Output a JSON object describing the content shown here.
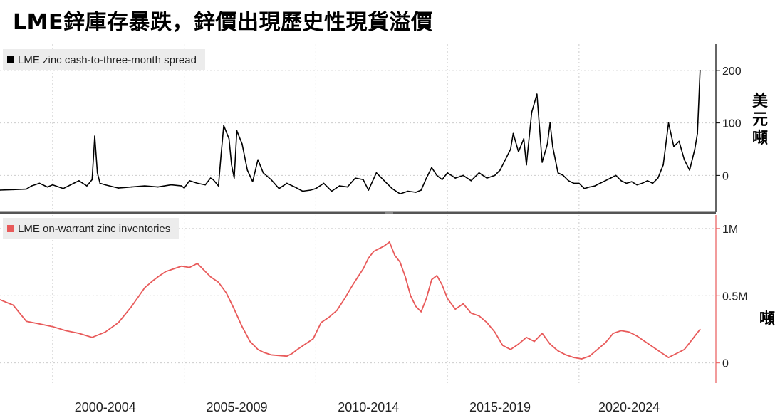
{
  "title": "LME鋅庫存暴跌，鋅價出現歷史性現貨溢價",
  "top_panel": {
    "legend": "LME zinc cash-to-three-month spread",
    "unit": "美元噸",
    "unit_lines": [
      "美",
      "元",
      "噸"
    ]
  },
  "bottom_panel": {
    "legend": "LME on-warrant zinc inventories",
    "unit": "噸"
  },
  "colors": {
    "spread_line": "#000000",
    "inventory_line": "#e85a5a",
    "grid": "#cccccc",
    "divider": "#555555"
  },
  "chart_data": [
    {
      "type": "line",
      "series": [
        {
          "name": "LME zinc cash-to-three-month spread",
          "x": [
            1998.0,
            1998.5,
            1999.0,
            1999.2,
            1999.5,
            1999.8,
            2000.0,
            2000.4,
            2000.8,
            2001.0,
            2001.3,
            2001.5,
            2001.6,
            2001.7,
            2001.8,
            2002.0,
            2002.5,
            2003.0,
            2003.5,
            2004.0,
            2004.5,
            2004.9,
            2005.0,
            2005.2,
            2005.5,
            2005.8,
            2006.0,
            2006.1,
            2006.3,
            2006.4,
            2006.5,
            2006.7,
            2006.8,
            2006.9,
            2007.0,
            2007.2,
            2007.4,
            2007.6,
            2007.8,
            2008.0,
            2008.3,
            2008.6,
            2008.9,
            2009.2,
            2009.5,
            2009.8,
            2010.0,
            2010.3,
            2010.6,
            2010.9,
            2011.2,
            2011.5,
            2011.8,
            2012.0,
            2012.3,
            2012.6,
            2012.9,
            2013.2,
            2013.5,
            2013.8,
            2014.0,
            2014.2,
            2014.4,
            2014.6,
            2014.8,
            2015.0,
            2015.3,
            2015.6,
            2015.9,
            2016.2,
            2016.5,
            2016.8,
            2017.0,
            2017.2,
            2017.4,
            2017.5,
            2017.7,
            2017.9,
            2018.0,
            2018.2,
            2018.4,
            2018.6,
            2018.8,
            2018.9,
            2019.0,
            2019.2,
            2019.4,
            2019.6,
            2019.8,
            2020.0,
            2020.2,
            2020.4,
            2020.6,
            2020.8,
            2021.0,
            2021.2,
            2021.4,
            2021.6,
            2021.8,
            2022.0,
            2022.2,
            2022.4,
            2022.6,
            2022.8,
            2023.0,
            2023.2,
            2023.4,
            2023.6,
            2023.8,
            2024.0,
            2024.2,
            2024.4,
            2024.5,
            2024.6
          ],
          "y": [
            -28,
            -27,
            -26,
            -20,
            -15,
            -22,
            -18,
            -25,
            -15,
            -10,
            -20,
            -8,
            75,
            5,
            -15,
            -18,
            -24,
            -22,
            -20,
            -22,
            -18,
            -20,
            -24,
            -10,
            -15,
            -18,
            -5,
            -8,
            -20,
            40,
            95,
            70,
            20,
            -5,
            85,
            60,
            10,
            -12,
            30,
            5,
            -8,
            -25,
            -15,
            -22,
            -30,
            -28,
            -25,
            -15,
            -30,
            -20,
            -22,
            -5,
            -8,
            -28,
            5,
            -10,
            -25,
            -35,
            -30,
            -32,
            -28,
            -5,
            15,
            0,
            -8,
            5,
            -5,
            0,
            -10,
            5,
            -5,
            0,
            10,
            30,
            50,
            80,
            45,
            70,
            20,
            120,
            155,
            25,
            60,
            100,
            55,
            5,
            0,
            -10,
            -15,
            -15,
            -25,
            -22,
            -20,
            -15,
            -10,
            -5,
            0,
            -10,
            -15,
            -12,
            -18,
            -15,
            -10,
            -15,
            -5,
            20,
            100,
            55,
            65,
            30,
            10,
            50,
            80,
            200
          ],
          "ylim": [
            -70,
            250
          ]
        }
      ],
      "y_ticks": [
        0,
        100,
        200
      ],
      "y_tick_labels": [
        "0",
        "100",
        "200"
      ],
      "xlim": [
        1998.0,
        2025.2
      ]
    },
    {
      "type": "line",
      "series": [
        {
          "name": "LME on-warrant zinc inventories",
          "x": [
            1998.0,
            1998.5,
            1999.0,
            1999.5,
            2000.0,
            2000.5,
            2001.0,
            2001.5,
            2002.0,
            2002.5,
            2003.0,
            2003.5,
            2003.8,
            2004.0,
            2004.3,
            2004.6,
            2004.9,
            2005.2,
            2005.5,
            2005.8,
            2006.0,
            2006.3,
            2006.6,
            2006.9,
            2007.2,
            2007.5,
            2007.8,
            2008.0,
            2008.3,
            2008.6,
            2008.9,
            2009.1,
            2009.3,
            2009.6,
            2009.9,
            2010.2,
            2010.5,
            2010.8,
            2011.1,
            2011.4,
            2011.6,
            2011.8,
            2012.0,
            2012.2,
            2012.4,
            2012.6,
            2012.8,
            2013.0,
            2013.2,
            2013.4,
            2013.6,
            2013.8,
            2014.0,
            2014.2,
            2014.4,
            2014.6,
            2014.8,
            2015.0,
            2015.3,
            2015.6,
            2015.9,
            2016.2,
            2016.5,
            2016.8,
            2017.1,
            2017.4,
            2017.7,
            2018.0,
            2018.3,
            2018.6,
            2018.9,
            2019.2,
            2019.5,
            2019.8,
            2020.1,
            2020.4,
            2020.7,
            2021.0,
            2021.3,
            2021.6,
            2021.9,
            2022.2,
            2022.5,
            2022.8,
            2023.1,
            2023.4,
            2023.7,
            2024.0,
            2024.2,
            2024.4,
            2024.6
          ],
          "y": [
            470000,
            430000,
            310000,
            290000,
            270000,
            240000,
            220000,
            190000,
            230000,
            300000,
            420000,
            560000,
            610000,
            640000,
            680000,
            700000,
            720000,
            710000,
            740000,
            680000,
            640000,
            600000,
            520000,
            400000,
            270000,
            160000,
            100000,
            80000,
            60000,
            55000,
            50000,
            70000,
            100000,
            140000,
            180000,
            300000,
            340000,
            390000,
            480000,
            580000,
            640000,
            700000,
            780000,
            830000,
            850000,
            870000,
            900000,
            800000,
            750000,
            640000,
            500000,
            420000,
            380000,
            480000,
            620000,
            650000,
            580000,
            480000,
            400000,
            440000,
            370000,
            350000,
            300000,
            230000,
            130000,
            100000,
            140000,
            190000,
            160000,
            220000,
            140000,
            90000,
            60000,
            40000,
            30000,
            50000,
            100000,
            150000,
            220000,
            240000,
            230000,
            200000,
            160000,
            120000,
            80000,
            40000,
            70000,
            100000,
            150000,
            200000,
            250000
          ],
          "ylim": [
            -150000,
            1100000
          ]
        }
      ],
      "y_ticks": [
        0,
        500000,
        1000000
      ],
      "y_tick_labels": [
        "0",
        "0.5M",
        "1M"
      ],
      "xlim": [
        1998.0,
        2025.2
      ]
    }
  ],
  "x_axis": {
    "labels": [
      "2000-2004",
      "2005-2009",
      "2010-2014",
      "2015-2019",
      "2020-2024"
    ],
    "label_centers": [
      2002.0,
      2007.0,
      2012.0,
      2017.0,
      2021.9
    ],
    "gridlines": [
      2000.0,
      2005.0,
      2010.0,
      2015.0,
      2020.0
    ]
  }
}
